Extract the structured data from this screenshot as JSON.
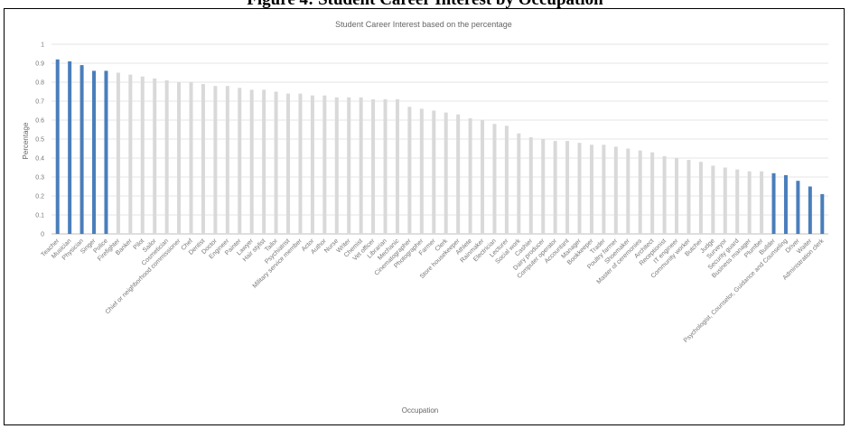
{
  "figure_caption": "Figure 4: Student Career Interest by Occupation",
  "chart_data": {
    "type": "bar",
    "title": "Student Career Interest based on the percentage",
    "xlabel": "Occupation",
    "ylabel": "Percentage",
    "ylim": [
      0,
      1
    ],
    "yticks": [
      "0",
      "0.1",
      "0.2",
      "0.3",
      "0.4",
      "0.5",
      "0.6",
      "0.7",
      "0.8",
      "0.9",
      "1"
    ],
    "grid": true,
    "legend": "none",
    "colors": {
      "highlight": "#4a7ebb",
      "default": "#d9d9d9",
      "grid": "#e6e6e6"
    },
    "categories": [
      "Teacher",
      "Musician",
      "Physician",
      "Singer",
      "Police",
      "Firefighter",
      "Banker",
      "Pilot",
      "Sailor",
      "Cosmetician",
      "Chief or neighborhood commissioner",
      "Chef",
      "Dentist",
      "Doctor",
      "Engineer",
      "Painter",
      "Lawyer",
      "Hair stylist",
      "Tailor",
      "Psychiatrist",
      "Military service member",
      "Actor",
      "Author",
      "Nurse",
      "Writer",
      "Chemist",
      "Vet officer",
      "Librarian",
      "Mechanic",
      "Cinematographer",
      "Photographer",
      "Farmer",
      "Clerk",
      "Store housekeeper",
      "Athlete",
      "Rainmaker",
      "Electrician",
      "Lecturer",
      "Social work",
      "Cashier",
      "Dairy producer",
      "Computer operator",
      "Accountant",
      "Manager",
      "Bookkeeper",
      "Trader",
      "Poultry farmer",
      "Shoemaker",
      "Master of ceremonies",
      "Architect",
      "Receptionist",
      "IT engineer",
      "Community worker",
      "Butcher",
      "Judge",
      "Surveyor",
      "Security guard",
      "Business manager",
      "Plumber",
      "Builder",
      "Psychologist, Counselor, Guidance and Counseling",
      "Driver",
      "Waiter",
      "Administration clerk"
    ],
    "values": [
      0.92,
      0.91,
      0.89,
      0.86,
      0.86,
      0.85,
      0.84,
      0.83,
      0.82,
      0.81,
      0.8,
      0.8,
      0.79,
      0.78,
      0.78,
      0.77,
      0.76,
      0.76,
      0.75,
      0.74,
      0.74,
      0.73,
      0.73,
      0.72,
      0.72,
      0.72,
      0.71,
      0.71,
      0.71,
      0.67,
      0.66,
      0.65,
      0.64,
      0.63,
      0.61,
      0.6,
      0.58,
      0.57,
      0.53,
      0.51,
      0.5,
      0.49,
      0.49,
      0.48,
      0.47,
      0.47,
      0.46,
      0.45,
      0.44,
      0.43,
      0.41,
      0.4,
      0.39,
      0.38,
      0.36,
      0.35,
      0.34,
      0.33,
      0.33,
      0.32,
      0.31,
      0.28,
      0.25,
      0.21
    ],
    "highlighted": [
      true,
      true,
      true,
      true,
      true,
      false,
      false,
      false,
      false,
      false,
      false,
      false,
      false,
      false,
      false,
      false,
      false,
      false,
      false,
      false,
      false,
      false,
      false,
      false,
      false,
      false,
      false,
      false,
      false,
      false,
      false,
      false,
      false,
      false,
      false,
      false,
      false,
      false,
      false,
      false,
      false,
      false,
      false,
      false,
      false,
      false,
      false,
      false,
      false,
      false,
      false,
      false,
      false,
      false,
      false,
      false,
      false,
      false,
      false,
      true,
      true,
      true,
      true,
      true
    ]
  }
}
